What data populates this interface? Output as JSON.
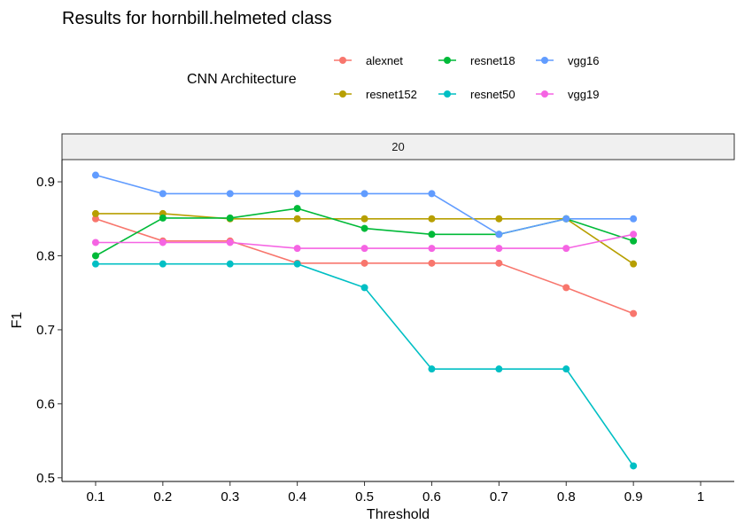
{
  "chart_data": {
    "type": "line",
    "title": "Results for hornbill.helmeted class",
    "facet_label": "20",
    "xlabel": "Threshold",
    "ylabel": "F1",
    "xlim": [
      0.05,
      1.05
    ],
    "ylim": [
      0.495,
      0.93
    ],
    "x_ticks": [
      0.1,
      0.2,
      0.3,
      0.4,
      0.5,
      0.6,
      0.7,
      0.8,
      0.9,
      1
    ],
    "x_tick_labels": [
      "0.1",
      "0.2",
      "0.3",
      "0.4",
      "0.5",
      "0.6",
      "0.7",
      "0.8",
      "0.9",
      "1"
    ],
    "y_ticks": [
      0.5,
      0.6,
      0.7,
      0.8,
      0.9
    ],
    "y_tick_labels": [
      "0.5",
      "0.6",
      "0.7",
      "0.8",
      "0.9"
    ],
    "grid": false,
    "legend": {
      "title": "CNN Architecture",
      "position": "top"
    },
    "x": [
      0.1,
      0.2,
      0.3,
      0.4,
      0.5,
      0.6,
      0.7,
      0.8,
      0.9
    ],
    "series": [
      {
        "name": "alexnet",
        "color": "#F8766D",
        "values": [
          0.85,
          0.82,
          0.82,
          0.79,
          0.79,
          0.79,
          0.79,
          0.757,
          0.722
        ]
      },
      {
        "name": "resnet152",
        "color": "#B79F00",
        "values": [
          0.857,
          0.857,
          0.85,
          0.85,
          0.85,
          0.85,
          0.85,
          0.85,
          0.789
        ]
      },
      {
        "name": "resnet18",
        "color": "#00BA38",
        "values": [
          0.8,
          0.851,
          0.851,
          0.864,
          0.837,
          0.829,
          0.829,
          0.85,
          0.82
        ]
      },
      {
        "name": "resnet50",
        "color": "#00BFC4",
        "values": [
          0.789,
          0.789,
          0.789,
          0.789,
          0.757,
          0.647,
          0.647,
          0.647,
          0.516
        ]
      },
      {
        "name": "vgg16",
        "color": "#619CFF",
        "values": [
          0.909,
          0.884,
          0.884,
          0.884,
          0.884,
          0.884,
          0.829,
          0.85,
          0.85
        ]
      },
      {
        "name": "vgg19",
        "color": "#F564E3",
        "values": [
          0.818,
          0.818,
          0.818,
          0.81,
          0.81,
          0.81,
          0.81,
          0.81,
          0.829
        ]
      }
    ]
  }
}
